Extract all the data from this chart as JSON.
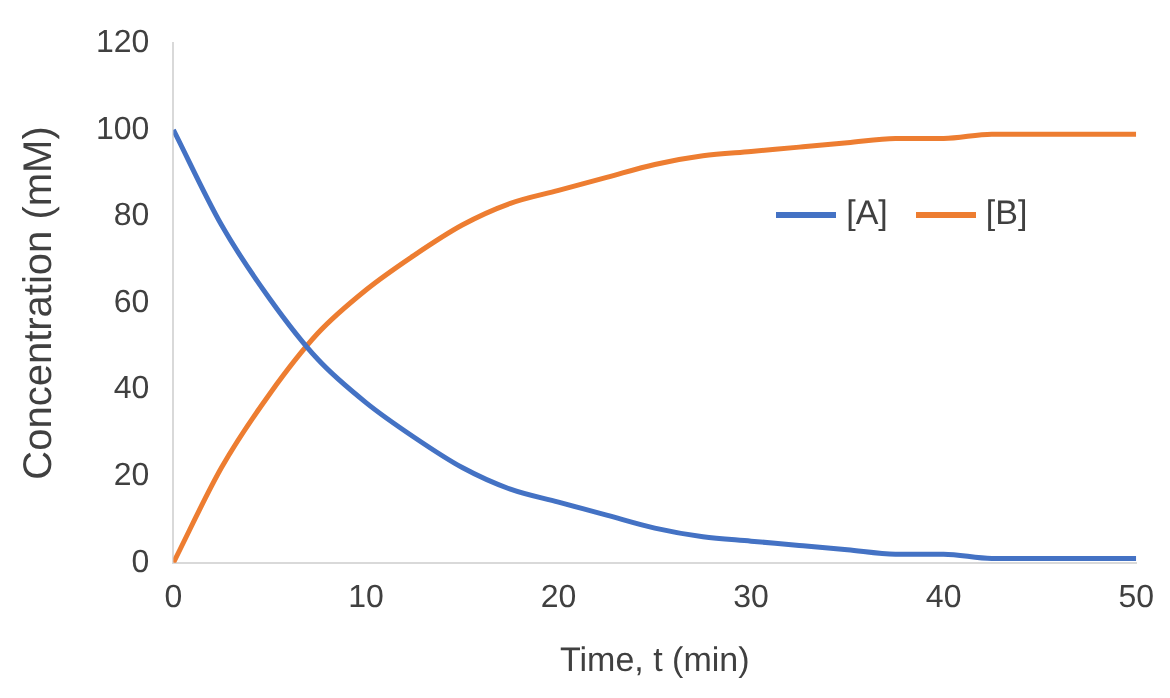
{
  "chart_data": {
    "type": "line",
    "xlabel": "Time, t (min)",
    "ylabel": "Concentration (mM)",
    "x": [
      0,
      2.5,
      5,
      7.5,
      10,
      12.5,
      15,
      17.5,
      20,
      22.5,
      25,
      27.5,
      30,
      32.5,
      35,
      37.5,
      40,
      42.5,
      45,
      47.5,
      50
    ],
    "series": [
      {
        "name": "[A]",
        "color": "#4472c4",
        "values": [
          100,
          78,
          61,
          47,
          37,
          29,
          22,
          17,
          14,
          11,
          8,
          6,
          5,
          4,
          3,
          2,
          2,
          1,
          1,
          1,
          1
        ]
      },
      {
        "name": "[B]",
        "color": "#ed7d31",
        "values": [
          0,
          22,
          39,
          53,
          63,
          71,
          78,
          83,
          86,
          89,
          92,
          94,
          95,
          96,
          97,
          98,
          98,
          99,
          99,
          99,
          99
        ]
      }
    ],
    "xlim": [
      0,
      50
    ],
    "xticks": [
      0,
      10,
      20,
      30,
      40,
      50
    ],
    "ylim": [
      0,
      120
    ],
    "yticks": [
      0,
      20,
      40,
      60,
      80,
      100,
      120
    ],
    "grid": false,
    "legend": "right",
    "marker": "none",
    "line_style": "solid"
  }
}
